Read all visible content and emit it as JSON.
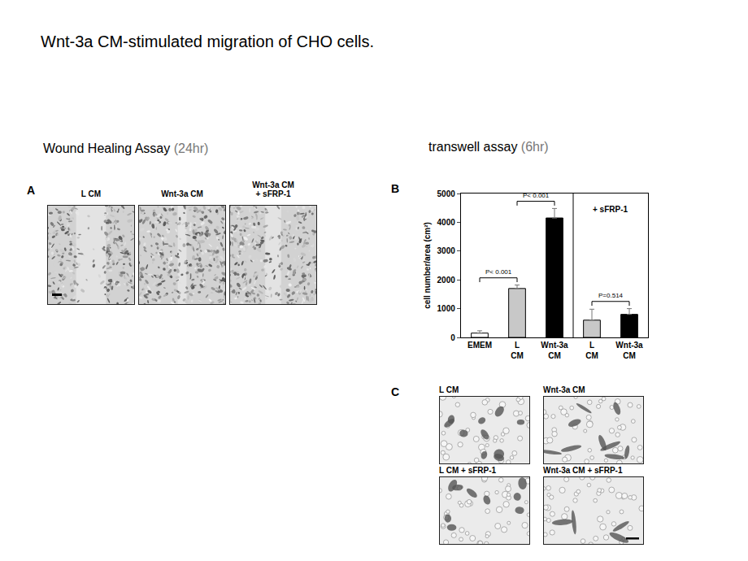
{
  "slide": {
    "title": "Wnt-3a CM-stimulated migration of CHO cells.",
    "left_heading": {
      "text": "Wound Healing Assay",
      "note": "(24hr)"
    },
    "right_heading": {
      "text": "transwell assay",
      "note": "(6hr)"
    },
    "panel_a": {
      "label": "A",
      "images": [
        "L CM",
        "Wnt-3a CM",
        "Wnt-3a CM\n+ sFRP-1"
      ]
    },
    "panel_b": {
      "label": "B"
    },
    "panel_c": {
      "label": "C",
      "images": [
        "L CM",
        "Wnt-3a CM",
        "L CM + sFRP-1",
        "Wnt-3a CM + sFRP-1"
      ]
    }
  },
  "chart_data": {
    "type": "bar",
    "y_label": "cell number/area (cm²)",
    "categories": [
      "EMEM",
      "L\nCM",
      "Wnt-3a\nCM",
      "L\nCM",
      "Wnt-3a\nCM"
    ],
    "values": [
      150,
      1700,
      4150,
      600,
      800
    ],
    "errors": [
      80,
      120,
      330,
      380,
      200
    ],
    "colors": [
      "#ffffff",
      "#c8c8c8",
      "#000000",
      "#c8c8c8",
      "#000000"
    ],
    "groups": [
      {
        "size": 3
      },
      {
        "size": 2,
        "label": "+ sFRP-1"
      }
    ],
    "comparisons": [
      {
        "pair": [
          0,
          1
        ],
        "label": "P< 0.001"
      },
      {
        "pair": [
          1,
          2
        ],
        "label": "P< 0.001"
      },
      {
        "pair": [
          3,
          4
        ],
        "label": "P=0.514"
      }
    ],
    "ylim": [
      0,
      5000
    ],
    "yticks": [
      0,
      1000,
      2000,
      3000,
      4000,
      5000
    ],
    "grid": false
  }
}
